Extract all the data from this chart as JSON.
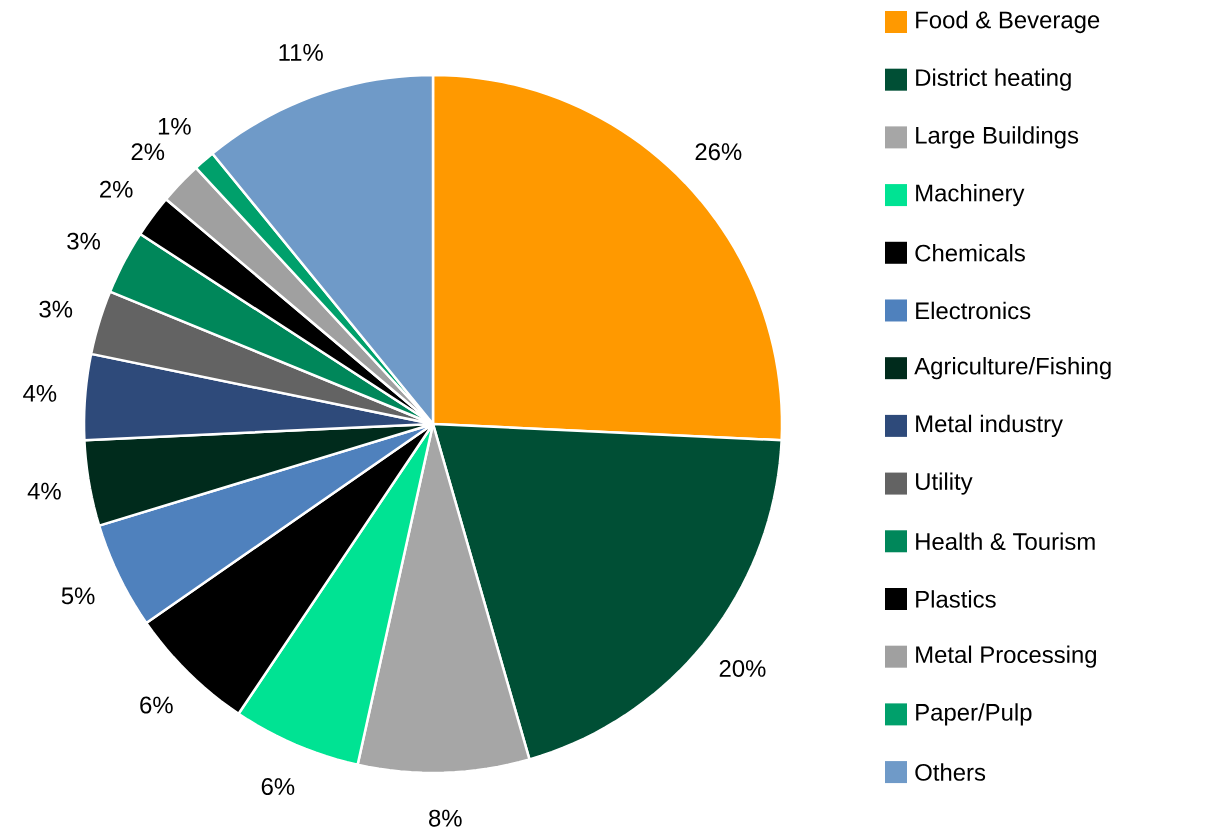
{
  "chart_data": {
    "type": "pie",
    "categories": [
      "Food & Beverage",
      "District heating",
      "Large Buildings",
      "Machinery",
      "Chemicals",
      "Electronics",
      "Agriculture/Fishing",
      "Metal industry",
      "Utility",
      "Health & Tourism",
      "Plastics",
      "Metal Processing",
      "Paper/Pulp",
      "Others"
    ],
    "values": [
      26,
      20,
      8,
      6,
      6,
      5,
      4,
      4,
      3,
      3,
      2,
      2,
      1,
      11
    ],
    "value_labels": [
      "26%",
      "20%",
      "8%",
      "6%",
      "6%",
      "5%",
      "4%",
      "4%",
      "3%",
      "3%",
      "2%",
      "2%",
      "1%",
      "11%"
    ],
    "colors": [
      "#ff9900",
      "#004f35",
      "#a6a6a6",
      "#00e393",
      "#000000",
      "#4f81bd",
      "#002b1c",
      "#2e4a7a",
      "#636363",
      "#00875a",
      "#000000",
      "#a0a0a0",
      "#00a06b",
      "#6f9ac8"
    ],
    "legend": "right"
  }
}
